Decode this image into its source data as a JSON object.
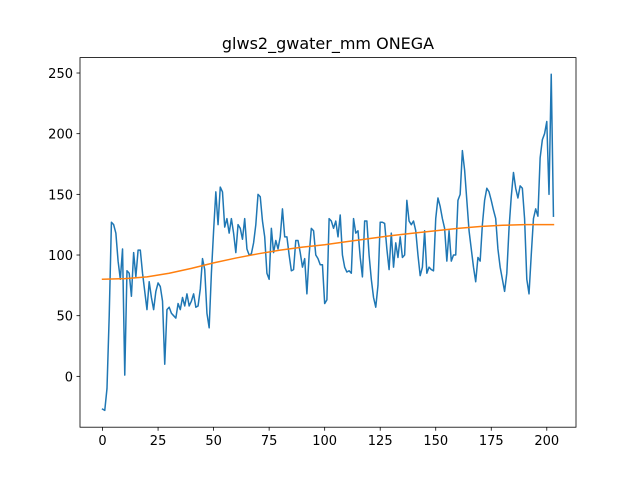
{
  "chart_data": {
    "type": "line",
    "title": "glws2_gwater_mm ONEGA",
    "xlim": [
      -10.15,
      213.15
    ],
    "xticks": [
      0,
      25,
      50,
      75,
      100,
      125,
      150,
      175,
      200
    ],
    "ylim": [
      -41.9,
      262.7
    ],
    "yticks": [
      0,
      50,
      100,
      150,
      200,
      250
    ],
    "series": [
      {
        "color": "#1f77b4",
        "values": [
          -27,
          -28,
          -10,
          50,
          127,
          125,
          118,
          95,
          80,
          105,
          1,
          87,
          85,
          66,
          102,
          82,
          104,
          104,
          85,
          70,
          55,
          78,
          65,
          55,
          70,
          77,
          74,
          62,
          10,
          55,
          57,
          52,
          50,
          48,
          60,
          55,
          65,
          58,
          68,
          58,
          62,
          68,
          57,
          58,
          72,
          97,
          88,
          52,
          40,
          85,
          120,
          152,
          125,
          156,
          152,
          123,
          130,
          118,
          130,
          118,
          102,
          125,
          122,
          113,
          130,
          105,
          100,
          101,
          110,
          125,
          150,
          148,
          128,
          115,
          85,
          80,
          122,
          102,
          112,
          105,
          115,
          138,
          115,
          115,
          100,
          87,
          88,
          112,
          112,
          102,
          90,
          97,
          68,
          100,
          122,
          120,
          100,
          97,
          92,
          92,
          60,
          63,
          130,
          128,
          122,
          128,
          115,
          133,
          100,
          90,
          86,
          87,
          85,
          130,
          118,
          120,
          98,
          82,
          128,
          128,
          100,
          80,
          65,
          57,
          75,
          127,
          127,
          126,
          105,
          88,
          118,
          90,
          110,
          98,
          115,
          98,
          100,
          145,
          128,
          125,
          128,
          120,
          100,
          83,
          90,
          120,
          85,
          90,
          88,
          87,
          130,
          147,
          140,
          130,
          122,
          95,
          120,
          95,
          100,
          100,
          145,
          150,
          186,
          170,
          145,
          120,
          105,
          90,
          78,
          98,
          95,
          125,
          145,
          155,
          152,
          145,
          137,
          130,
          105,
          90,
          80,
          70,
          85,
          122,
          148,
          168,
          155,
          147,
          157,
          155,
          130,
          80,
          68,
          100,
          130,
          138,
          132,
          180,
          195,
          200,
          210,
          150,
          249,
          132
        ]
      },
      {
        "color": "#ff7f0e",
        "x": [
          0,
          10,
          20,
          30,
          40,
          50,
          60,
          70,
          80,
          90,
          100,
          110,
          120,
          130,
          140,
          150,
          160,
          170,
          180,
          190,
          200,
          203
        ],
        "values": [
          80,
          80.5,
          82,
          85,
          89,
          93.5,
          97.5,
          101,
          104,
          106.5,
          108.5,
          111,
          113.5,
          116,
          118,
          120,
          122,
          123.5,
          124.5,
          125,
          125,
          125
        ]
      }
    ]
  }
}
